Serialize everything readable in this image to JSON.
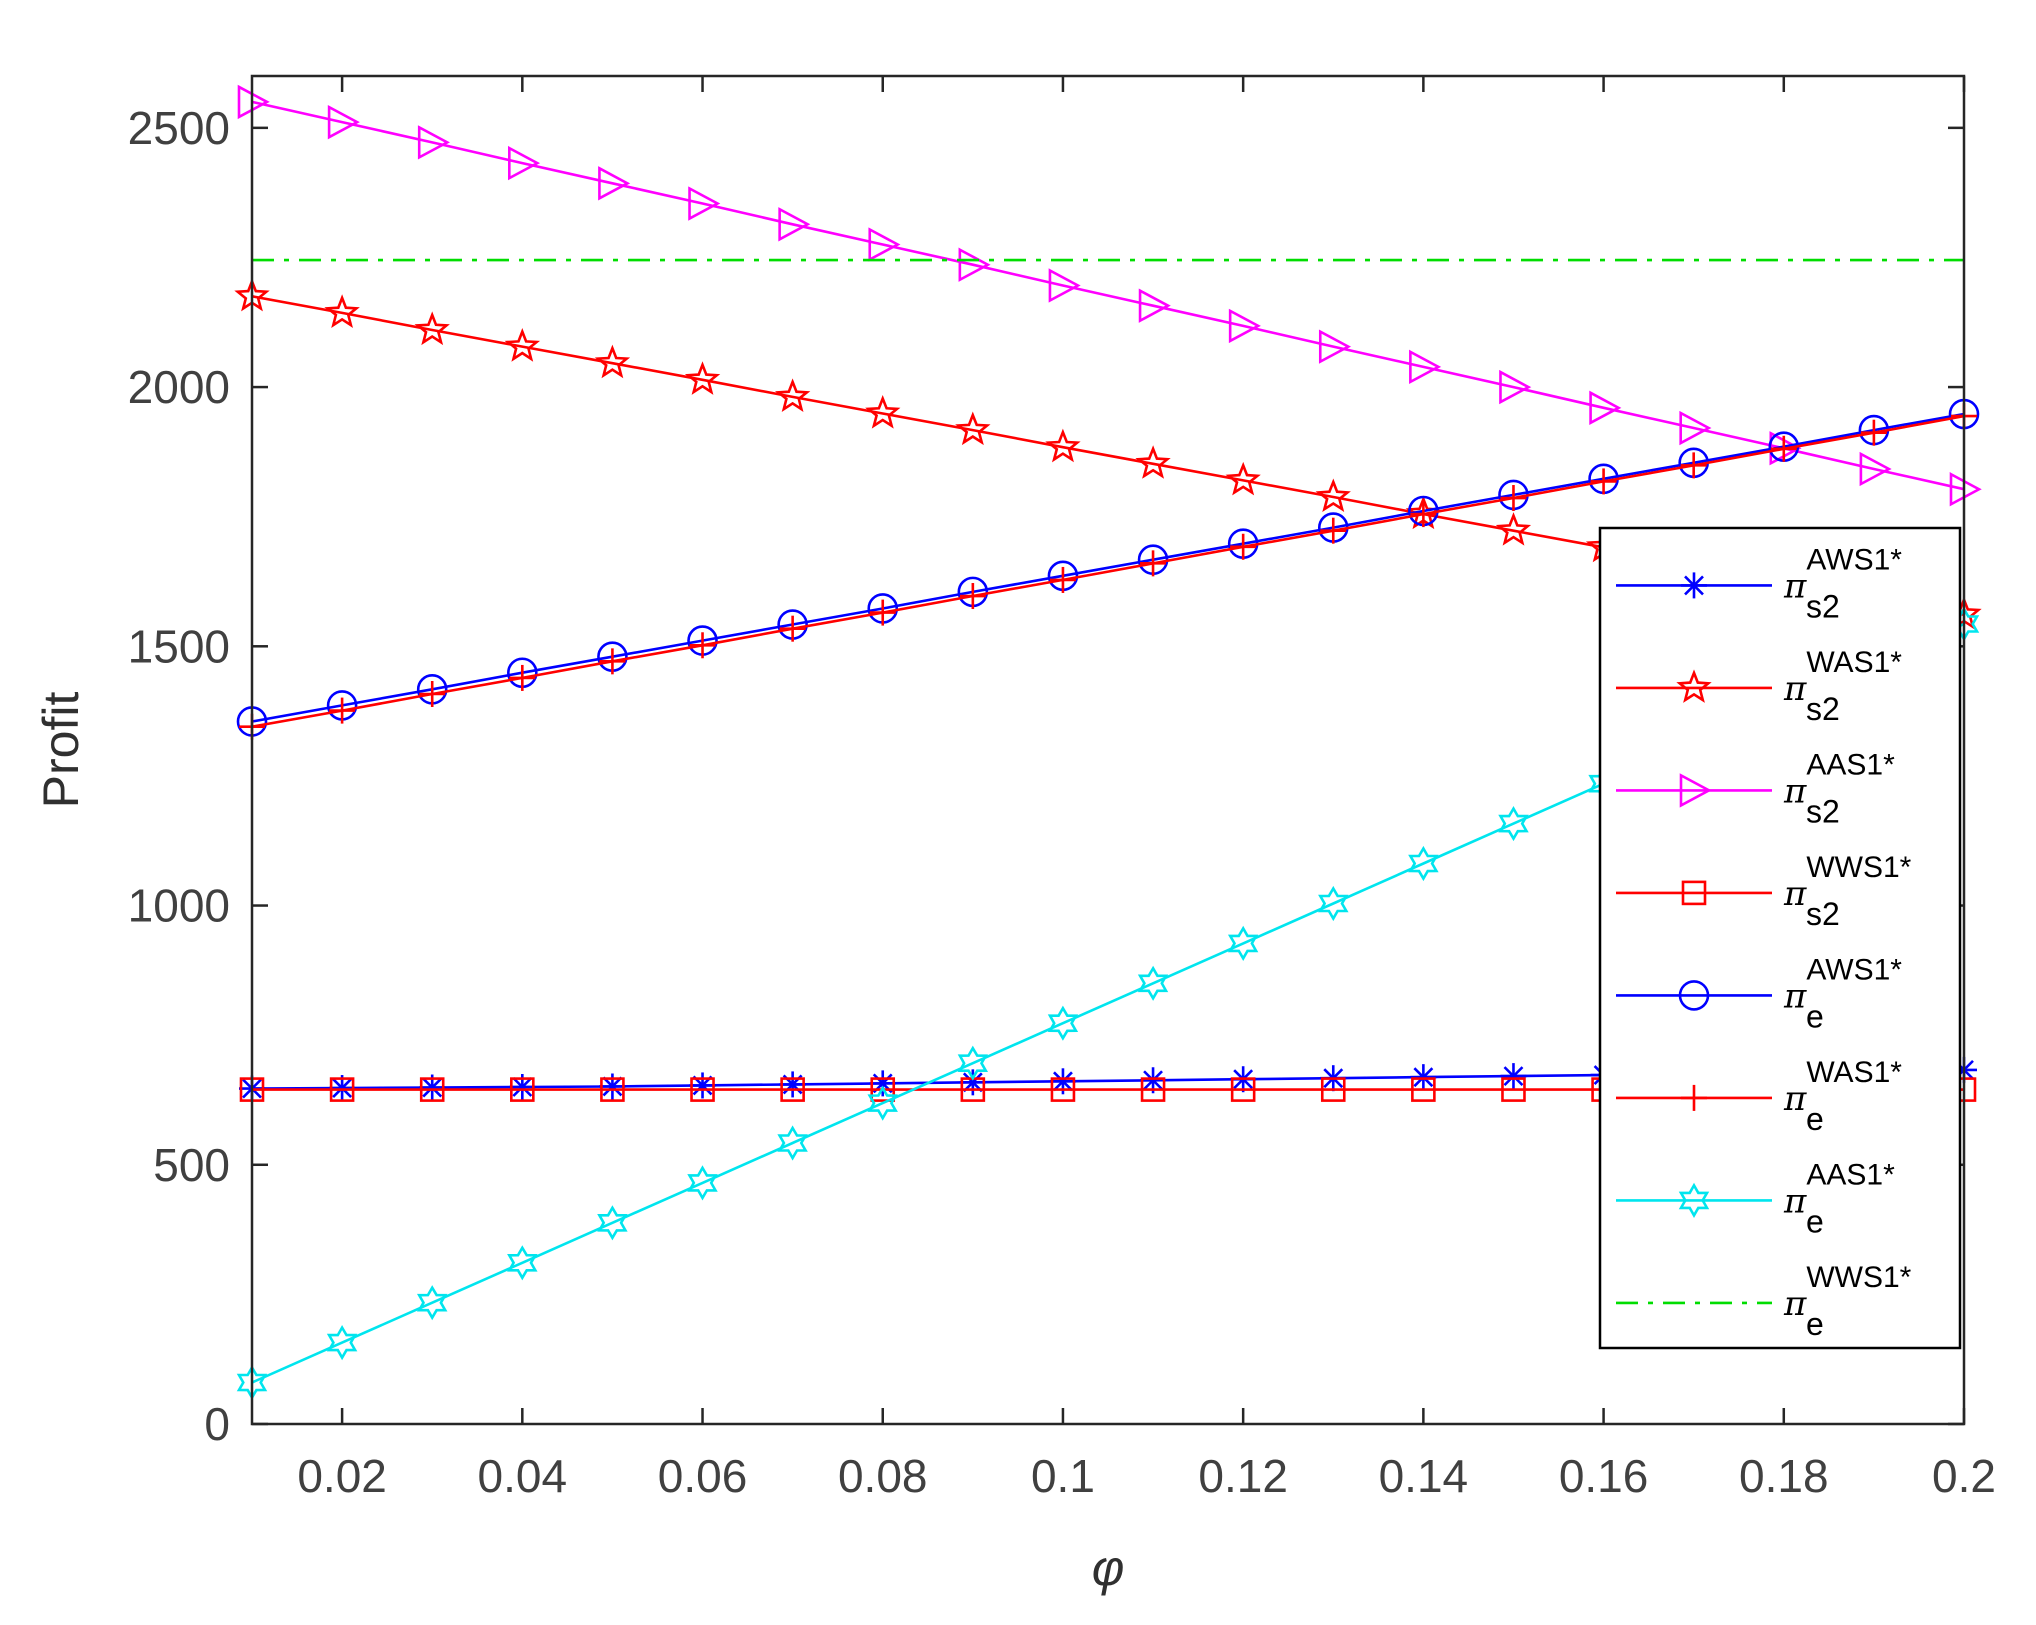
{
  "chart_data": {
    "type": "line",
    "xlabel": "φ",
    "ylabel": "Profit",
    "xlim": [
      0.01,
      0.2
    ],
    "ylim": [
      0,
      2600
    ],
    "xticks": [
      0.02,
      0.04,
      0.06,
      0.08,
      0.1,
      0.12,
      0.14,
      0.16,
      0.18,
      0.2
    ],
    "xtick_labels": [
      "0.02",
      "0.04",
      "0.06",
      "0.08",
      "0.1",
      "0.12",
      "0.14",
      "0.16",
      "0.18",
      "0.2"
    ],
    "yticks": [
      0,
      500,
      1000,
      1500,
      2000,
      2500
    ],
    "ytick_labels": [
      "0",
      "500",
      "1000",
      "1500",
      "2000",
      "2500"
    ],
    "grid": false,
    "legend_position": "right",
    "x": [
      0.01,
      0.02,
      0.03,
      0.04,
      0.05,
      0.06,
      0.07,
      0.08,
      0.09,
      0.1,
      0.11,
      0.12,
      0.13,
      0.14,
      0.15,
      0.16,
      0.17,
      0.18,
      0.19,
      0.2
    ],
    "series": [
      {
        "legend_base": "π",
        "legend_sup": "AWS1*",
        "legend_sub": "s2",
        "color": "#0000ff",
        "marker": "asterisk",
        "dash": "",
        "values": [
          647,
          648,
          649,
          650,
          651,
          653,
          655,
          657,
          659,
          661,
          663,
          665,
          667,
          669,
          671,
          673,
          675,
          677,
          680,
          683
        ]
      },
      {
        "legend_base": "π",
        "legend_sup": "WAS1*",
        "legend_sub": "s2",
        "color": "#ff0000",
        "marker": "star",
        "dash": "",
        "values": [
          2175,
          2143,
          2110,
          2078,
          2046,
          2014,
          1981,
          1949,
          1917,
          1884,
          1852,
          1820,
          1788,
          1755,
          1723,
          1691,
          1658,
          1626,
          1594,
          1561
        ]
      },
      {
        "legend_base": "π",
        "legend_sup": "AAS1*",
        "legend_sub": "s2",
        "color": "#ff00ff",
        "marker": "triangle-right",
        "dash": "",
        "values": [
          2550,
          2511,
          2472,
          2432,
          2393,
          2354,
          2314,
          2275,
          2236,
          2196,
          2157,
          2118,
          2078,
          2039,
          2000,
          1960,
          1921,
          1882,
          1842,
          1803
        ]
      },
      {
        "legend_base": "π",
        "legend_sup": "WWS1*",
        "legend_sub": "s2",
        "color": "#ff0000",
        "marker": "square",
        "dash": "",
        "values": [
          645,
          645,
          645,
          645,
          645,
          645,
          645,
          645,
          645,
          645,
          645,
          645,
          645,
          645,
          645,
          645,
          645,
          645,
          645,
          645
        ]
      },
      {
        "legend_base": "π",
        "legend_sup": "AWS1*",
        "legend_sub": "e",
        "color": "#0000ff",
        "marker": "circle",
        "dash": "",
        "values": [
          1355,
          1386,
          1417,
          1449,
          1480,
          1511,
          1542,
          1573,
          1605,
          1636,
          1667,
          1698,
          1729,
          1761,
          1792,
          1823,
          1854,
          1885,
          1917,
          1948
        ]
      },
      {
        "legend_base": "π",
        "legend_sup": "WAS1*",
        "legend_sub": "e",
        "color": "#ff0000",
        "marker": "plus",
        "dash": "",
        "values": [
          1345,
          1376,
          1408,
          1439,
          1471,
          1502,
          1534,
          1565,
          1597,
          1628,
          1660,
          1692,
          1723,
          1755,
          1786,
          1818,
          1849,
          1881,
          1912,
          1944
        ]
      },
      {
        "legend_base": "π",
        "legend_sup": "AAS1*",
        "legend_sub": "e",
        "color": "#00e5ee",
        "marker": "hexagram",
        "dash": "",
        "values": [
          80,
          157,
          234,
          311,
          388,
          465,
          542,
          619,
          696,
          773,
          850,
          927,
          1004,
          1081,
          1158,
          1235,
          1312,
          1389,
          1466,
          1543
        ]
      },
      {
        "legend_base": "π",
        "legend_sup": "WWS1*",
        "legend_sub": "e",
        "color": "#00dd00",
        "marker": "none",
        "dash": "22,10,5,10",
        "values": [
          2245,
          2245,
          2245,
          2245,
          2245,
          2245,
          2245,
          2245,
          2245,
          2245,
          2245,
          2245,
          2245,
          2245,
          2245,
          2245,
          2245,
          2245,
          2245,
          2245
        ]
      }
    ]
  }
}
